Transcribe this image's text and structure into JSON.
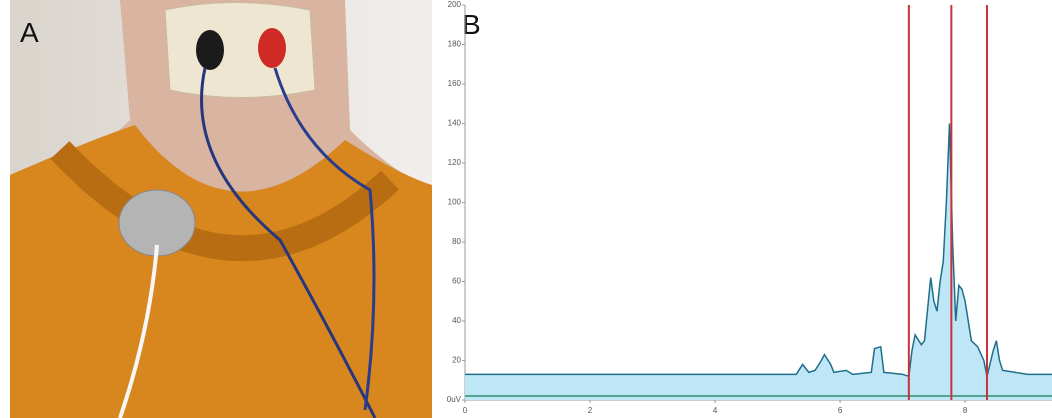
{
  "panel_a": {
    "label": "A"
  },
  "chart_data": {
    "type": "area",
    "label": "B",
    "xlim": [
      0,
      9.39
    ],
    "ylim": [
      0,
      200
    ],
    "xticks": [
      0,
      2,
      4,
      6,
      8
    ],
    "yticks": [
      {
        "value": 0,
        "label": "0uV"
      },
      20,
      40,
      60,
      80,
      100,
      120,
      140,
      160,
      180,
      200
    ],
    "series": [
      {
        "color": "#1d6f8a",
        "fill": "#bfe6f7",
        "x": [
          0,
          1,
          2,
          3,
          4,
          5,
          5.3,
          5.4,
          5.5,
          5.6,
          5.7,
          5.75,
          5.85,
          5.9,
          6.1,
          6.2,
          6.5,
          6.55,
          6.65,
          6.7,
          7.0,
          7.1,
          7.15,
          7.2,
          7.3,
          7.35,
          7.45,
          7.5,
          7.55,
          7.6,
          7.65,
          7.7,
          7.75,
          7.8,
          7.85,
          7.9,
          7.95,
          8.0,
          8.05,
          8.1,
          8.2,
          8.3,
          8.35,
          8.45,
          8.5,
          8.55,
          8.6,
          9,
          9.39
        ],
        "values": [
          13,
          13,
          13,
          13,
          13,
          13,
          13,
          18,
          14,
          15,
          20,
          23,
          18,
          14,
          15,
          13,
          14,
          26,
          27,
          14,
          13,
          12,
          25,
          33,
          28,
          30,
          62,
          50,
          45,
          60,
          70,
          100,
          140,
          80,
          40,
          58,
          56,
          50,
          40,
          30,
          27,
          20,
          12,
          25,
          30,
          20,
          15,
          13,
          13
        ]
      },
      {
        "color": "#2a8f6a",
        "x": [
          0,
          9.39
        ],
        "values": [
          2,
          2
        ]
      }
    ],
    "markers": [
      7.1,
      7.78,
      8.35
    ],
    "marker_color": "#c8323a"
  }
}
